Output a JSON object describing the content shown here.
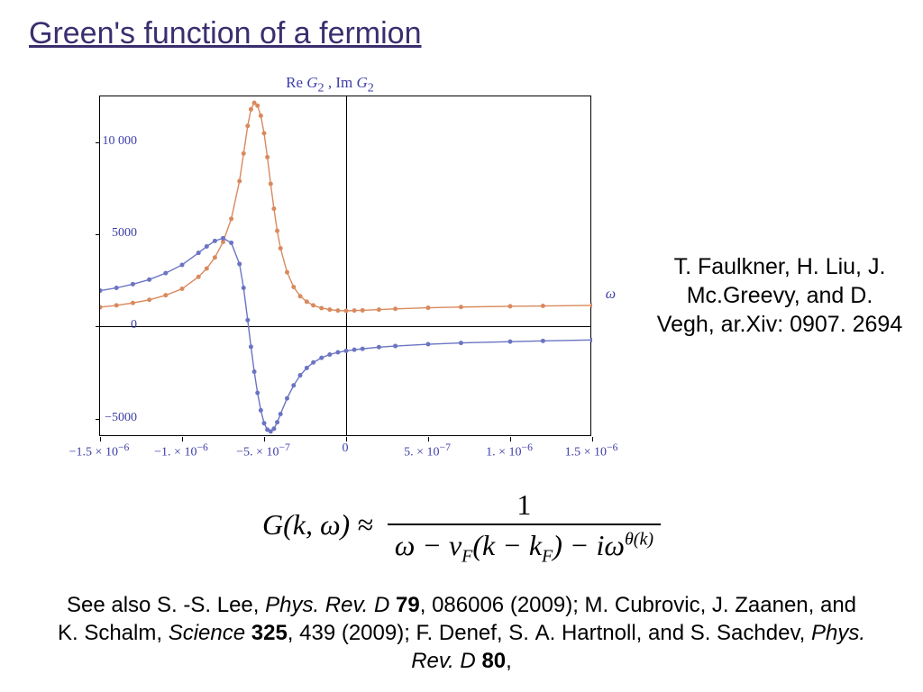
{
  "title": "Green's function of a fermion",
  "chart": {
    "type": "line-with-markers",
    "title_html": "Re <i>G</i><sub>2</sub> , Im <i>G</i><sub>2</sub>",
    "xlabel": "ω",
    "xlim": [
      -1.5e-06,
      1.5e-06
    ],
    "ylim": [
      -6000,
      12500
    ],
    "yticks": [
      -5000,
      0,
      5000,
      10000
    ],
    "ytick_labels": [
      "−5000",
      "0",
      "5000",
      "10 000"
    ],
    "xticks": [
      -1.5e-06,
      -1e-06,
      -5e-07,
      0,
      5e-07,
      1e-06,
      1.5e-06
    ],
    "xtick_labels_html": [
      "−1.5 × 10<sup>−6</sup>",
      "−1. × 10<sup>−6</sup>",
      "−5. × 10<sup>−7</sup>",
      "0",
      "5. × 10<sup>−7</sup>",
      "1. × 10<sup>−6</sup>",
      "1.5 × 10<sup>−6</sup>"
    ],
    "series": [
      {
        "name": "ImG2",
        "color": "#d98a5e",
        "marker_color": "#d98a5e",
        "marker_size": 2.5,
        "line_width": 1.4,
        "x": [
          -1.5e-06,
          -1.4e-06,
          -1.3e-06,
          -1.2e-06,
          -1.1e-06,
          -1e-06,
          -9e-07,
          -8.5e-07,
          -8e-07,
          -7.5e-07,
          -7e-07,
          -6.5e-07,
          -6.25e-07,
          -6e-07,
          -5.8e-07,
          -5.6e-07,
          -5.4e-07,
          -5.2e-07,
          -5e-07,
          -4.8e-07,
          -4.6e-07,
          -4.4e-07,
          -4.2e-07,
          -4e-07,
          -3.6e-07,
          -3.2e-07,
          -2.8e-07,
          -2.4e-07,
          -2e-07,
          -1.5e-07,
          -1e-07,
          -5e-08,
          0,
          5e-08,
          1e-07,
          2e-07,
          3e-07,
          5e-07,
          7e-07,
          1e-06,
          1.2e-06,
          1.5e-06
        ],
        "y": [
          1050,
          1150,
          1280,
          1450,
          1700,
          2050,
          2700,
          3150,
          3750,
          4600,
          5850,
          7900,
          9400,
          10900,
          11800,
          12150,
          12000,
          11450,
          10500,
          9200,
          7750,
          6400,
          5200,
          4250,
          2950,
          2150,
          1650,
          1350,
          1150,
          1000,
          920,
          870,
          850,
          870,
          880,
          920,
          960,
          1020,
          1060,
          1100,
          1120,
          1150
        ]
      },
      {
        "name": "ReG2",
        "color": "#6b74c2",
        "marker_color": "#6b74c2",
        "marker_size": 2.5,
        "line_width": 1.4,
        "x": [
          -1.5e-06,
          -1.4e-06,
          -1.3e-06,
          -1.2e-06,
          -1.1e-06,
          -1e-06,
          -9e-07,
          -8.5e-07,
          -8e-07,
          -7.5e-07,
          -7e-07,
          -6.5e-07,
          -6.25e-07,
          -6e-07,
          -5.8e-07,
          -5.6e-07,
          -5.4e-07,
          -5.2e-07,
          -5e-07,
          -4.8e-07,
          -4.6e-07,
          -4.4e-07,
          -4.2e-07,
          -4e-07,
          -3.6e-07,
          -3.2e-07,
          -2.8e-07,
          -2.4e-07,
          -2e-07,
          -1.5e-07,
          -1e-07,
          -5e-08,
          0,
          5e-08,
          1e-07,
          2e-07,
          3e-07,
          5e-07,
          7e-07,
          1e-06,
          1.2e-06,
          1.5e-06
        ],
        "y": [
          1950,
          2100,
          2300,
          2550,
          2900,
          3350,
          4000,
          4350,
          4650,
          4800,
          4550,
          3400,
          2100,
          350,
          -1100,
          -2450,
          -3600,
          -4550,
          -5250,
          -5600,
          -5700,
          -5550,
          -5200,
          -4750,
          -3900,
          -3200,
          -2650,
          -2250,
          -1950,
          -1700,
          -1520,
          -1400,
          -1320,
          -1260,
          -1210,
          -1120,
          -1060,
          -960,
          -890,
          -820,
          -780,
          -730
        ]
      }
    ],
    "background_color": "#ffffff",
    "axis_color": "#000000"
  },
  "attribution": "T. Faulkner, H. Liu, J. Mc.Greevy, and D. Vegh, ar.Xiv: 0907. 2694",
  "formula": {
    "lhs_html": "<i>G</i>(<i>k</i>, <i>ω</i>) ≈",
    "numerator": "1",
    "denominator_html": "ω − v<span class='sub'>F</span>(k − k<span class='sub'>F</span>) − iω<span class='sup'>θ(k)</span>"
  },
  "references_html": "See also S. -S. Lee, <span class='ital'>Phys. Rev. D</span> <span class='bold'>79</span>, 086006 (2009); M. Cubrovic, J. Zaanen, and K. Schalm, <span class='ital'>Science</span> <span class='bold'>325</span>, 439 (2009); F. Denef, S. A. Hartnoll, and S. Sachdev, <span class='ital'>Phys. Rev. D</span> <span class='bold'>80</span>,"
}
